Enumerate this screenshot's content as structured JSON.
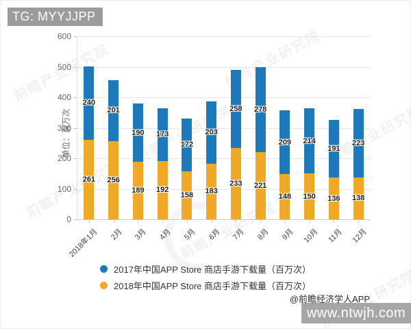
{
  "header": {
    "tag": "TG: MYYJJPP"
  },
  "watermark": {
    "text": "前瞻产业研究院"
  },
  "chart_data": {
    "type": "bar",
    "stacked": true,
    "title": "",
    "ylabel": "单位：百万次",
    "xlabel": "",
    "ylim": [
      0,
      600
    ],
    "yticks": [
      0,
      100,
      200,
      300,
      400,
      500,
      600
    ],
    "grid": true,
    "legend_position": "bottom",
    "categories": [
      "2018年1月",
      "2月",
      "3月",
      "4月",
      "5月",
      "6月",
      "7月",
      "8月",
      "9月",
      "10月",
      "11月",
      "12月"
    ],
    "series": [
      {
        "name": "2017年中国APP Store 商店手游下载量（百万次）",
        "color": "#1e79b8",
        "stack_order": "top",
        "values": [
          240,
          201,
          190,
          173,
          172,
          203,
          258,
          278,
          209,
          214,
          191,
          223
        ]
      },
      {
        "name": "2018年中国APP Store 商店手游下载量（百万次）",
        "color": "#efa929",
        "stack_order": "bottom",
        "values": [
          261,
          256,
          189,
          192,
          158,
          183,
          233,
          221,
          148,
          150,
          136,
          138
        ]
      }
    ]
  },
  "footer": {
    "credit": "@前瞻经济学人APP",
    "site": "www.ntwjh.com"
  }
}
